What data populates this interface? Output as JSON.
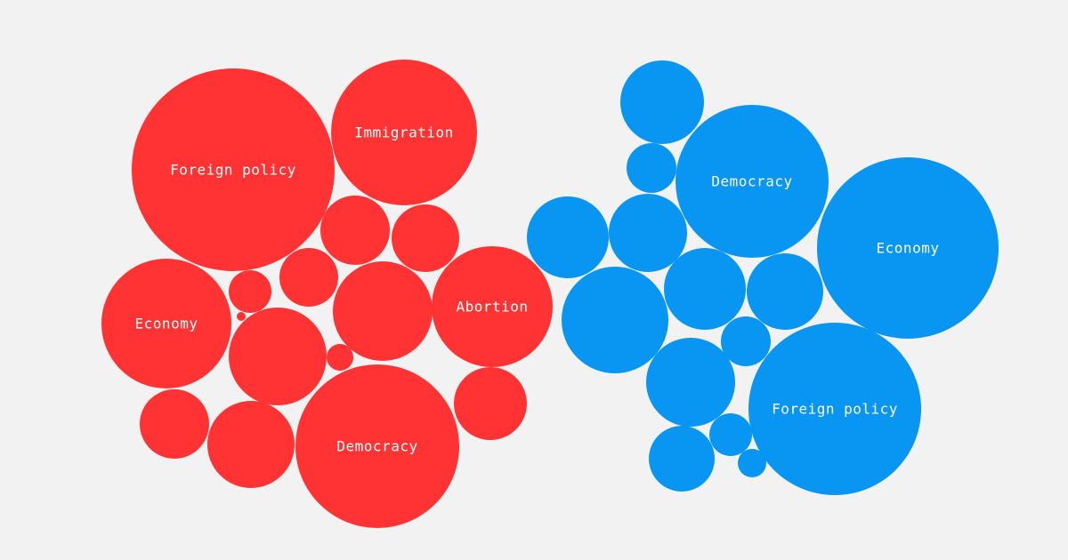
{
  "colors": {
    "background": "#f2f2f2",
    "red": "#ff3333",
    "blue": "#0896f2",
    "label": "#ffffff"
  },
  "chart_data": {
    "type": "bubble",
    "title": "",
    "series": [
      {
        "color": "#ff3333",
        "bubbles": [
          {
            "label": "Foreign policy"
          },
          {
            "label": "Immigration"
          },
          {
            "label": "Democracy"
          },
          {
            "label": "Economy"
          },
          {
            "label": "Abortion"
          },
          {
            "label": ""
          },
          {
            "label": ""
          },
          {
            "label": ""
          },
          {
            "label": ""
          },
          {
            "label": ""
          },
          {
            "label": ""
          },
          {
            "label": ""
          },
          {
            "label": ""
          },
          {
            "label": ""
          },
          {
            "label": ""
          },
          {
            "label": ""
          },
          {
            "label": ""
          }
        ]
      },
      {
        "color": "#0896f2",
        "bubbles": [
          {
            "label": "Economy"
          },
          {
            "label": "Foreign policy"
          },
          {
            "label": "Democracy"
          },
          {
            "label": ""
          },
          {
            "label": ""
          },
          {
            "label": ""
          },
          {
            "label": ""
          },
          {
            "label": ""
          },
          {
            "label": ""
          },
          {
            "label": ""
          },
          {
            "label": ""
          },
          {
            "label": ""
          },
          {
            "label": ""
          },
          {
            "label": ""
          },
          {
            "label": ""
          },
          {
            "label": ""
          }
        ]
      }
    ]
  }
}
